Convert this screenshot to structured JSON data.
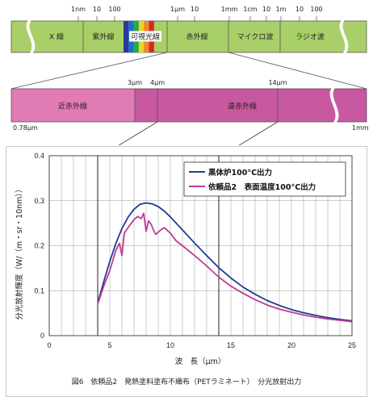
{
  "spectrum_bar": {
    "top_ticks": [
      "1nm",
      "10",
      "100",
      "1μm",
      "10",
      "1mm",
      "1cm",
      "10",
      "1m",
      "10",
      "100"
    ],
    "bands": [
      "X 線",
      "紫外線",
      "可視光線",
      "赤外線",
      "マイクロ波",
      "ラジオ波"
    ],
    "colors": {
      "green": "#a9cf68",
      "visible": [
        "#2a3a9a",
        "#1e6bd6",
        "#2aa84a",
        "#e8d62a",
        "#f08a24",
        "#d8282a"
      ]
    }
  },
  "ir_bar": {
    "tick_labels": [
      "3μm",
      "4μm",
      "14μm"
    ],
    "edge_labels": [
      "0.78μm",
      "1mm"
    ],
    "bands": [
      "近赤外線",
      "遠赤外線"
    ],
    "colors": {
      "near": "#e07bb4",
      "far": "#c8589f"
    }
  },
  "chart_data": {
    "type": "line",
    "xlabel": "波　長（μm）",
    "ylabel": "分光放射輝度（W/（m・sr・10nm））",
    "xlim": [
      0,
      25
    ],
    "ylim": [
      0,
      0.4
    ],
    "xticks": [
      0,
      5,
      10,
      15,
      20,
      25
    ],
    "yticks": [
      0,
      0.1,
      0.2,
      0.3,
      0.4
    ],
    "grid": "vertical minor every 1μm",
    "legend_position": "top-right",
    "markers_x": [
      4,
      14
    ],
    "series": [
      {
        "name": "黒体炉100°C出力",
        "color": "#1f3d8f",
        "x": [
          4,
          4.5,
          5,
          5.5,
          6,
          6.5,
          7,
          7.5,
          8,
          8.5,
          9,
          9.5,
          10,
          11,
          12,
          13,
          14,
          15,
          16,
          17,
          18,
          19,
          20,
          21,
          22,
          23,
          24,
          25
        ],
        "y": [
          0.073,
          0.12,
          0.165,
          0.205,
          0.238,
          0.263,
          0.281,
          0.292,
          0.295,
          0.293,
          0.287,
          0.277,
          0.264,
          0.235,
          0.206,
          0.178,
          0.151,
          0.128,
          0.108,
          0.092,
          0.078,
          0.067,
          0.058,
          0.051,
          0.045,
          0.04,
          0.036,
          0.033
        ]
      },
      {
        "name": "依頼品2　表面温度100°C出力",
        "color": "#c03a95",
        "x": [
          4,
          4.5,
          5,
          5.5,
          5.8,
          6,
          6.2,
          6.5,
          7,
          7.3,
          7.6,
          7.8,
          8,
          8.2,
          8.4,
          8.6,
          8.8,
          9.2,
          9.5,
          10,
          10.5,
          11,
          12,
          13,
          14,
          15,
          16,
          17,
          18,
          19,
          20,
          21,
          22,
          23,
          24,
          25
        ],
        "y": [
          0.07,
          0.11,
          0.145,
          0.19,
          0.205,
          0.178,
          0.228,
          0.24,
          0.258,
          0.265,
          0.26,
          0.272,
          0.232,
          0.255,
          0.248,
          0.235,
          0.225,
          0.235,
          0.24,
          0.228,
          0.21,
          0.2,
          0.178,
          0.155,
          0.13,
          0.11,
          0.094,
          0.08,
          0.068,
          0.059,
          0.052,
          0.046,
          0.041,
          0.037,
          0.034,
          0.031
        ]
      }
    ]
  },
  "caption": "図6　依頼品2　発熱塗料塗布不織布（PETラミネート）　分光放射出力"
}
